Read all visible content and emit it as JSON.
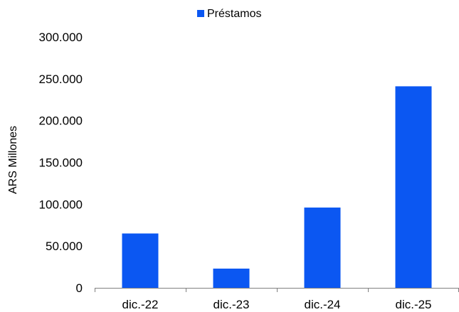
{
  "chart_data": {
    "type": "bar",
    "categories": [
      "dic.-22",
      "dic.-23",
      "dic.-24",
      "dic.-25"
    ],
    "series": [
      {
        "name": "Préstamos",
        "values": [
          65000,
          23000,
          96000,
          241000
        ],
        "color": "#0b57f2"
      }
    ],
    "ylabel": "ARS Millones",
    "xlabel": "",
    "ylim": [
      0,
      300000
    ],
    "yticks": [
      0,
      50000,
      100000,
      150000,
      200000,
      250000,
      300000
    ],
    "ytick_labels": [
      "0",
      "50.000",
      "100.000",
      "150.000",
      "200.000",
      "250.000",
      "300.000"
    ],
    "grid": false,
    "legend_position": "top-center"
  }
}
